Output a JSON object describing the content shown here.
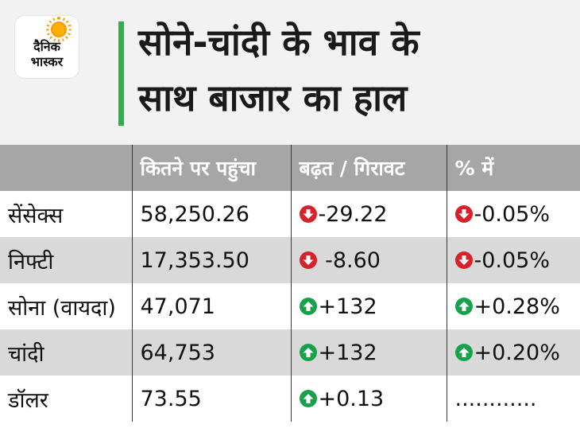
{
  "header": {
    "logo_line1": "दैनिक",
    "logo_line2": "भास्कर",
    "title_line1": "सोने-चांदी के भाव के",
    "title_line2": "साथ बाजार का हाल"
  },
  "table": {
    "columns": [
      "",
      "कितने पर पहुंचा",
      "बढ़त / गिरावट",
      "% में"
    ],
    "rows": [
      {
        "name": "सेंसेक्स",
        "value": "58,250.26",
        "change": "-29.22",
        "change_dir": "down",
        "pct": "-0.05%",
        "pct_dir": "down"
      },
      {
        "name": "निफ्टी",
        "value": "17,353.50",
        "change": " -8.60",
        "change_dir": "down",
        "pct": "-0.05%",
        "pct_dir": "down"
      },
      {
        "name": "सोना (वायदा)",
        "value": "47,071",
        "change": "+132",
        "change_dir": "up",
        "pct": "+0.28%",
        "pct_dir": "up"
      },
      {
        "name": "चांदी",
        "value": "64,753",
        "change": "+132",
        "change_dir": "up",
        "pct": "+0.20%",
        "pct_dir": "up"
      },
      {
        "name": "डॉलर",
        "value": "73.55",
        "change": "+0.13",
        "change_dir": "up",
        "pct": "............",
        "pct_dir": "none"
      }
    ]
  },
  "colors": {
    "down": "#d6222a",
    "up": "#16a24a",
    "accent_bar": "#2db24a",
    "header_row": "#a6a6a6"
  }
}
